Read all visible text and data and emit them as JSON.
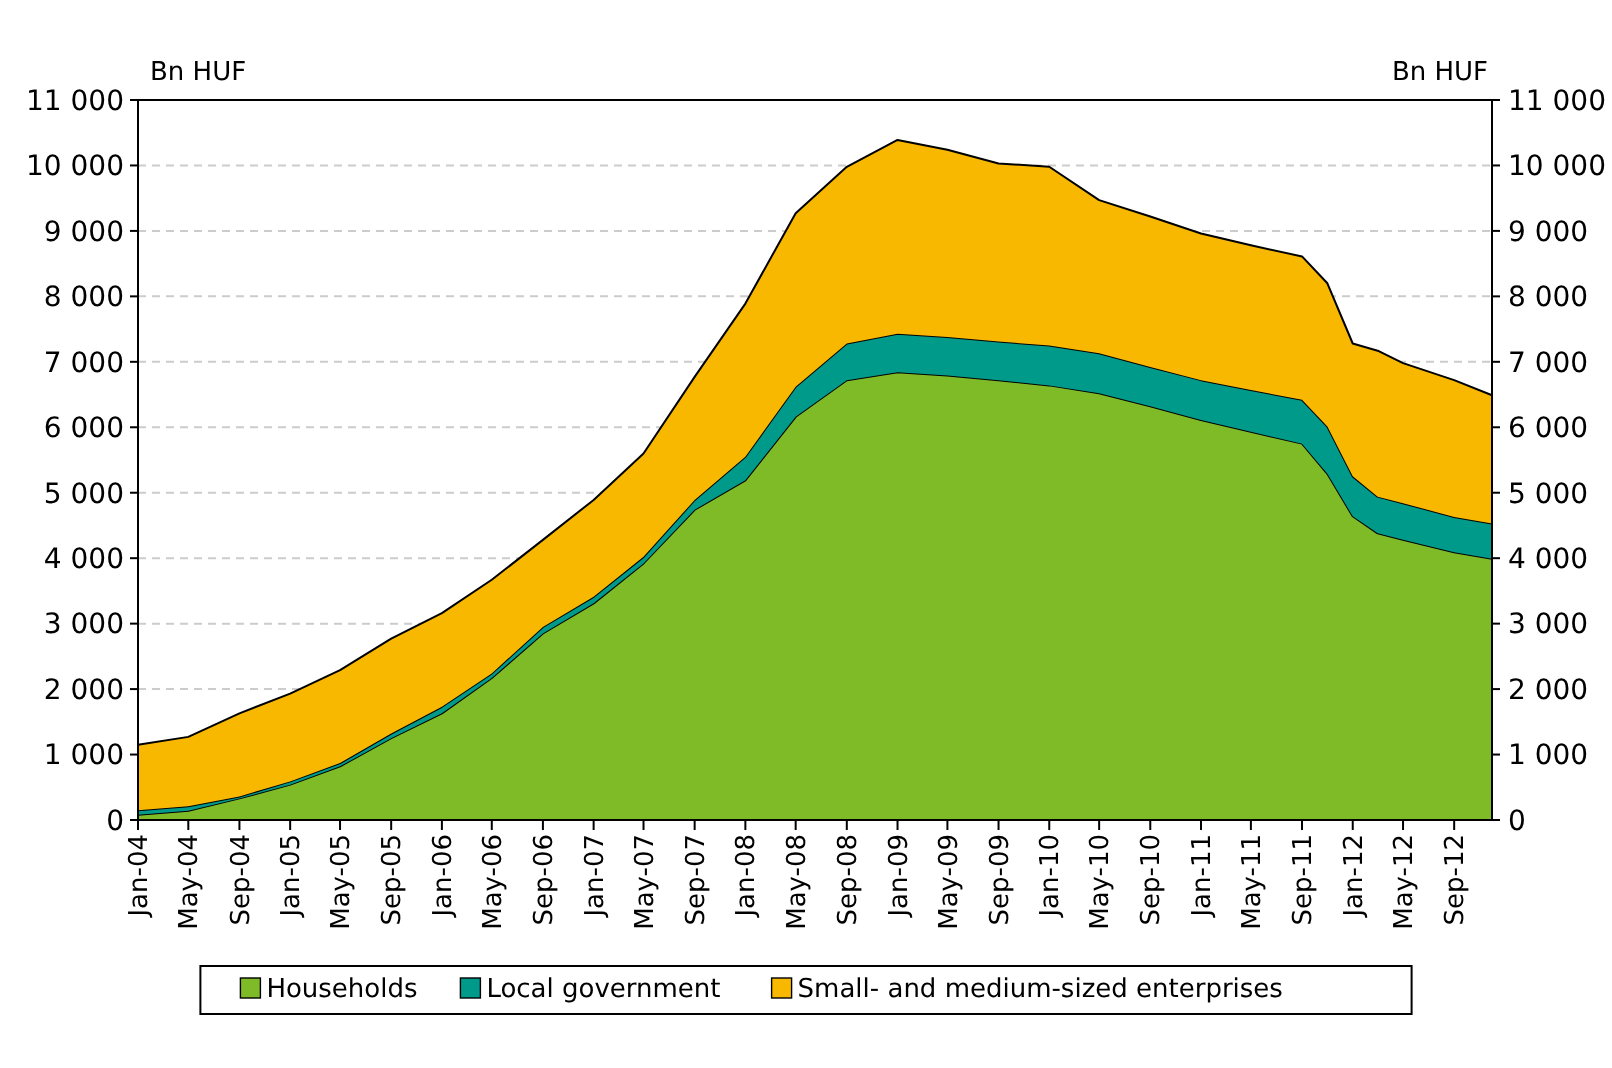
{
  "chart_data": {
    "type": "area",
    "stacked": true,
    "ylabel": "Bn HUF",
    "y2label": "Bn HUF",
    "x": [
      "2004-01",
      "2004-05",
      "2004-09",
      "2005-01",
      "2005-05",
      "2005-09",
      "2006-01",
      "2006-05",
      "2006-09",
      "2007-01",
      "2007-05",
      "2007-09",
      "2008-01",
      "2008-05",
      "2008-09",
      "2009-01",
      "2009-05",
      "2009-09",
      "2010-01",
      "2010-05",
      "2010-09",
      "2011-01",
      "2011-05",
      "2011-09",
      "2011-11",
      "2012-01",
      "2012-03",
      "2012-05",
      "2012-09",
      "2012-12"
    ],
    "series": [
      {
        "name": "Households",
        "color": "#7fba27",
        "values": [
          80,
          140,
          330,
          540,
          820,
          1250,
          1630,
          2170,
          2850,
          3310,
          3920,
          4740,
          5190,
          6160,
          6720,
          6840,
          6790,
          6720,
          6640,
          6520,
          6320,
          6110,
          5930,
          5750,
          5290,
          4640,
          4380,
          4280,
          4090,
          3990
        ]
      },
      {
        "name": "Local government",
        "color": "#009a8a",
        "values": [
          70,
          70,
          30,
          50,
          50,
          70,
          100,
          70,
          100,
          100,
          100,
          150,
          360,
          460,
          560,
          590,
          590,
          590,
          610,
          610,
          600,
          610,
          640,
          670,
          720,
          610,
          560,
          560,
          540,
          540
        ]
      },
      {
        "name": "Small- and medium-sized enterprises",
        "color": "#f9b800",
        "values": [
          1000,
          1060,
          1270,
          1340,
          1420,
          1450,
          1430,
          1430,
          1330,
          1480,
          1580,
          1880,
          2340,
          2650,
          2700,
          2960,
          2860,
          2720,
          2730,
          2340,
          2300,
          2240,
          2210,
          2190,
          2190,
          2030,
          2230,
          2140,
          2090,
          1960
        ]
      }
    ],
    "xlim": [
      "2004-01",
      "2012-12"
    ],
    "xticks": [
      {
        "value": "2004-01",
        "label": "Jan-04"
      },
      {
        "value": "2004-05",
        "label": "May-04"
      },
      {
        "value": "2004-09",
        "label": "Sep-04"
      },
      {
        "value": "2005-01",
        "label": "Jan-05"
      },
      {
        "value": "2005-05",
        "label": "May-05"
      },
      {
        "value": "2005-09",
        "label": "Sep-05"
      },
      {
        "value": "2006-01",
        "label": "Jan-06"
      },
      {
        "value": "2006-05",
        "label": "May-06"
      },
      {
        "value": "2006-09",
        "label": "Sep-06"
      },
      {
        "value": "2007-01",
        "label": "Jan-07"
      },
      {
        "value": "2007-05",
        "label": "May-07"
      },
      {
        "value": "2007-09",
        "label": "Sep-07"
      },
      {
        "value": "2008-01",
        "label": "Jan-08"
      },
      {
        "value": "2008-05",
        "label": "May-08"
      },
      {
        "value": "2008-09",
        "label": "Sep-08"
      },
      {
        "value": "2009-01",
        "label": "Jan-09"
      },
      {
        "value": "2009-05",
        "label": "May-09"
      },
      {
        "value": "2009-09",
        "label": "Sep-09"
      },
      {
        "value": "2010-01",
        "label": "Jan-10"
      },
      {
        "value": "2010-05",
        "label": "May-10"
      },
      {
        "value": "2010-09",
        "label": "Sep-10"
      },
      {
        "value": "2011-01",
        "label": "Jan-11"
      },
      {
        "value": "2011-05",
        "label": "May-11"
      },
      {
        "value": "2011-09",
        "label": "Sep-11"
      },
      {
        "value": "2012-01",
        "label": "Jan-12"
      },
      {
        "value": "2012-05",
        "label": "May-12"
      },
      {
        "value": "2012-09",
        "label": "Sep-12"
      }
    ],
    "ylim": [
      0,
      11000
    ],
    "yticks": [
      0,
      {
        "value": 1000,
        "label": "1 000"
      },
      {
        "value": 2000,
        "label": "2 000"
      },
      {
        "value": 3000,
        "label": "3 000"
      },
      {
        "value": 4000,
        "label": "4 000"
      },
      {
        "value": 5000,
        "label": "5 000"
      },
      {
        "value": 6000,
        "label": "6 000"
      },
      {
        "value": 7000,
        "label": "7 000"
      },
      {
        "value": 8000,
        "label": "8 000"
      },
      {
        "value": 9000,
        "label": "9 000"
      },
      {
        "value": 10000,
        "label": "10 000"
      },
      {
        "value": 11000,
        "label": "11 000"
      }
    ],
    "y2lim": [
      0,
      11000
    ],
    "y2ticks": [
      0,
      {
        "value": 1000,
        "label": "1 000"
      },
      {
        "value": 2000,
        "label": "2 000"
      },
      {
        "value": 3000,
        "label": "3 000"
      },
      {
        "value": 4000,
        "label": "4 000"
      },
      {
        "value": 5000,
        "label": "5 000"
      },
      {
        "value": 6000,
        "label": "6 000"
      },
      {
        "value": 7000,
        "label": "7 000"
      },
      {
        "value": 8000,
        "label": "8 000"
      },
      {
        "value": 9000,
        "label": "9 000"
      },
      {
        "value": 10000,
        "label": "10 000"
      },
      {
        "value": 11000,
        "label": "11 000"
      }
    ],
    "grid": "y",
    "legend": "bottom"
  }
}
